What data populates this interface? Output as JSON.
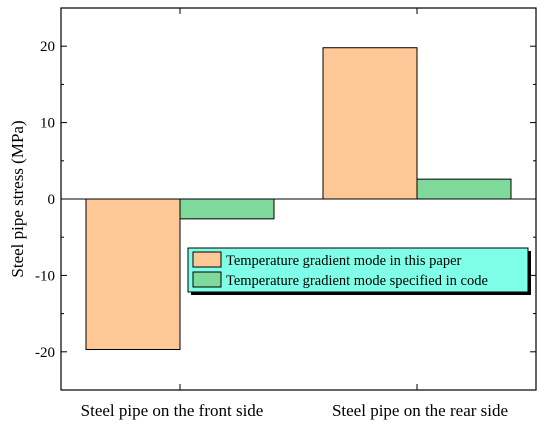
{
  "chart_data": {
    "type": "bar",
    "categories": [
      "Steel pipe on the front side",
      "Steel pipe on the rear side"
    ],
    "series": [
      {
        "name": "Temperature gradient mode in this paper",
        "values": [
          -19.7,
          19.8
        ],
        "color": "#FDC896"
      },
      {
        "name": "Temperature gradient mode specified in code",
        "values": [
          -2.6,
          2.6
        ],
        "color": "#7ED99B"
      }
    ],
    "ylabel": "Steel pipe stress (MPa)",
    "xlabel": "",
    "title": "",
    "ylim": [
      -25,
      25
    ],
    "yticks": [
      -20,
      -10,
      0,
      10,
      20
    ],
    "grid": false,
    "legend": {
      "placement": "middle-right",
      "background": "#7FFFE8"
    }
  }
}
